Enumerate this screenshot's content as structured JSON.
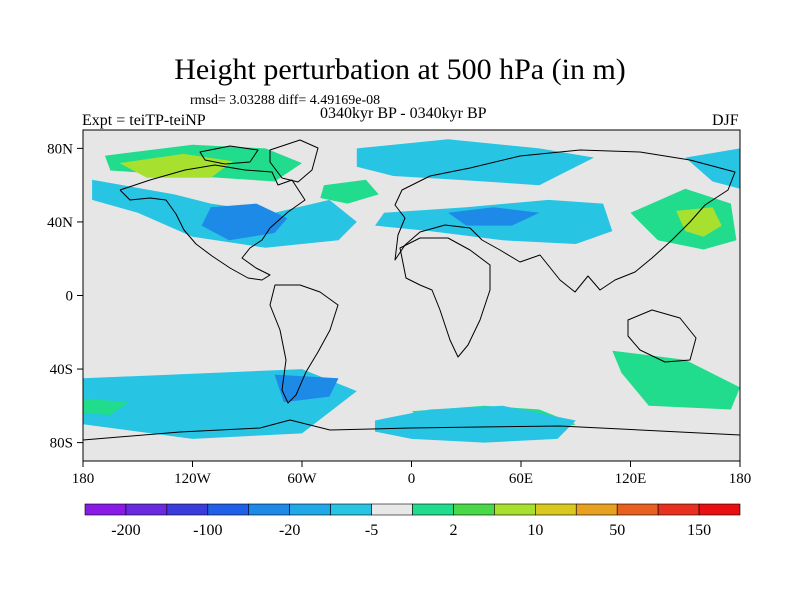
{
  "title": "Height perturbation at 500 hPa (in m)",
  "stats": "rmsd= 3.03288 diff= 4.49169e-08",
  "experiment": "Expt = teiTP-teiNP",
  "period": "0340kyr BP - 0340kyr BP",
  "season": "DJF",
  "lat_ticks": [
    {
      "value": 80,
      "label": "80N"
    },
    {
      "value": 40,
      "label": "40N"
    },
    {
      "value": 0,
      "label": "0"
    },
    {
      "value": -40,
      "label": "40S"
    },
    {
      "value": -80,
      "label": "80S"
    }
  ],
  "lon_ticks": [
    {
      "value": -180,
      "label": "180"
    },
    {
      "value": -120,
      "label": "120W"
    },
    {
      "value": -60,
      "label": "60W"
    },
    {
      "value": 0,
      "label": "0"
    },
    {
      "value": 60,
      "label": "60E"
    },
    {
      "value": 120,
      "label": "120E"
    },
    {
      "value": 180,
      "label": "180"
    }
  ],
  "colorbar": {
    "colors": [
      "#8a1be6",
      "#6a2ae0",
      "#3c3cdc",
      "#2060e8",
      "#1e8ae8",
      "#20a8e8",
      "#28c4e4",
      "#e8e8e8",
      "#20dc8c",
      "#48d848",
      "#a8e030",
      "#d8c820",
      "#e8a020",
      "#e86020",
      "#e83020",
      "#e81010"
    ],
    "labels": [
      {
        "boundary": 1,
        "text": "-200"
      },
      {
        "boundary": 3,
        "text": "-100"
      },
      {
        "boundary": 5,
        "text": "-20"
      },
      {
        "boundary": 7,
        "text": "-5"
      },
      {
        "boundary": 9,
        "text": "2"
      },
      {
        "boundary": 11,
        "text": "10"
      },
      {
        "boundary": 13,
        "text": "50"
      },
      {
        "boundary": 15,
        "text": "150"
      }
    ]
  },
  "fill_colors": {
    "background": "#e6e6e6",
    "cyan": "#28c4e4",
    "blue": "#1e8ae8",
    "green": "#20dc8c",
    "yellowgreen": "#a8e030"
  },
  "anomaly_regions": [
    {
      "color": "cyan",
      "lon": [
        -175,
        -130,
        -110,
        -75,
        -45,
        -30,
        -40,
        -80,
        -120,
        -150,
        -175
      ],
      "lat": [
        63,
        55,
        50,
        45,
        52,
        40,
        30,
        26,
        32,
        45,
        52
      ]
    },
    {
      "color": "blue",
      "lon": [
        -110,
        -85,
        -68,
        -75,
        -100,
        -115
      ],
      "lat": [
        48,
        50,
        42,
        34,
        30,
        38
      ]
    },
    {
      "color": "green",
      "lon": [
        -168,
        -120,
        -80,
        -60,
        -75,
        -120,
        -165
      ],
      "lat": [
        76,
        82,
        80,
        72,
        62,
        65,
        68
      ]
    },
    {
      "color": "yellowgreen",
      "lon": [
        -160,
        -125,
        -98,
        -110,
        -145
      ],
      "lat": [
        72,
        77,
        73,
        64,
        64
      ]
    },
    {
      "color": "green",
      "lon": [
        -48,
        -25,
        -18,
        -35,
        -50
      ],
      "lat": [
        60,
        63,
        55,
        50,
        53
      ]
    },
    {
      "color": "cyan",
      "lon": [
        -30,
        20,
        70,
        100,
        70,
        25,
        -10,
        -30
      ],
      "lat": [
        80,
        85,
        80,
        75,
        60,
        63,
        65,
        70
      ]
    },
    {
      "color": "cyan",
      "lon": [
        -15,
        30,
        75,
        105,
        110,
        90,
        50,
        10,
        -20
      ],
      "lat": [
        45,
        48,
        52,
        50,
        35,
        28,
        30,
        35,
        38
      ]
    },
    {
      "color": "blue",
      "lon": [
        20,
        45,
        70,
        55,
        30
      ],
      "lat": [
        45,
        48,
        45,
        38,
        38
      ]
    },
    {
      "color": "green",
      "lon": [
        120,
        150,
        175,
        178,
        160,
        135
      ],
      "lat": [
        45,
        58,
        50,
        30,
        25,
        30
      ]
    },
    {
      "color": "yellowgreen",
      "lon": [
        145,
        165,
        170,
        160,
        150
      ],
      "lat": [
        46,
        48,
        38,
        32,
        35
      ]
    },
    {
      "color": "cyan",
      "lon": [
        150,
        180,
        180,
        165
      ],
      "lat": [
        75,
        80,
        58,
        62
      ]
    },
    {
      "color": "cyan",
      "lon": [
        -180,
        -60,
        -30,
        -60,
        -120,
        -180
      ],
      "lat": [
        -45,
        -40,
        -52,
        -75,
        -78,
        -70
      ]
    },
    {
      "color": "blue",
      "lon": [
        -75,
        -40,
        -45,
        -70
      ],
      "lat": [
        -43,
        -45,
        -55,
        -58
      ]
    },
    {
      "color": "green",
      "lon": [
        -180,
        -155,
        -165,
        -180
      ],
      "lat": [
        -56,
        -58,
        -65,
        -64
      ]
    },
    {
      "color": "green",
      "lon": [
        0,
        40,
        70,
        90,
        60,
        20
      ],
      "lat": [
        -63,
        -60,
        -62,
        -70,
        -78,
        -75
      ]
    },
    {
      "color": "green",
      "lon": [
        110,
        150,
        180,
        175,
        130,
        115
      ],
      "lat": [
        -30,
        -35,
        -50,
        -62,
        -60,
        -42
      ]
    },
    {
      "color": "cyan",
      "lon": [
        -20,
        10,
        50,
        90,
        80,
        40,
        0,
        -20
      ],
      "lat": [
        -68,
        -62,
        -60,
        -68,
        -78,
        -80,
        -78,
        -74
      ]
    }
  ]
}
